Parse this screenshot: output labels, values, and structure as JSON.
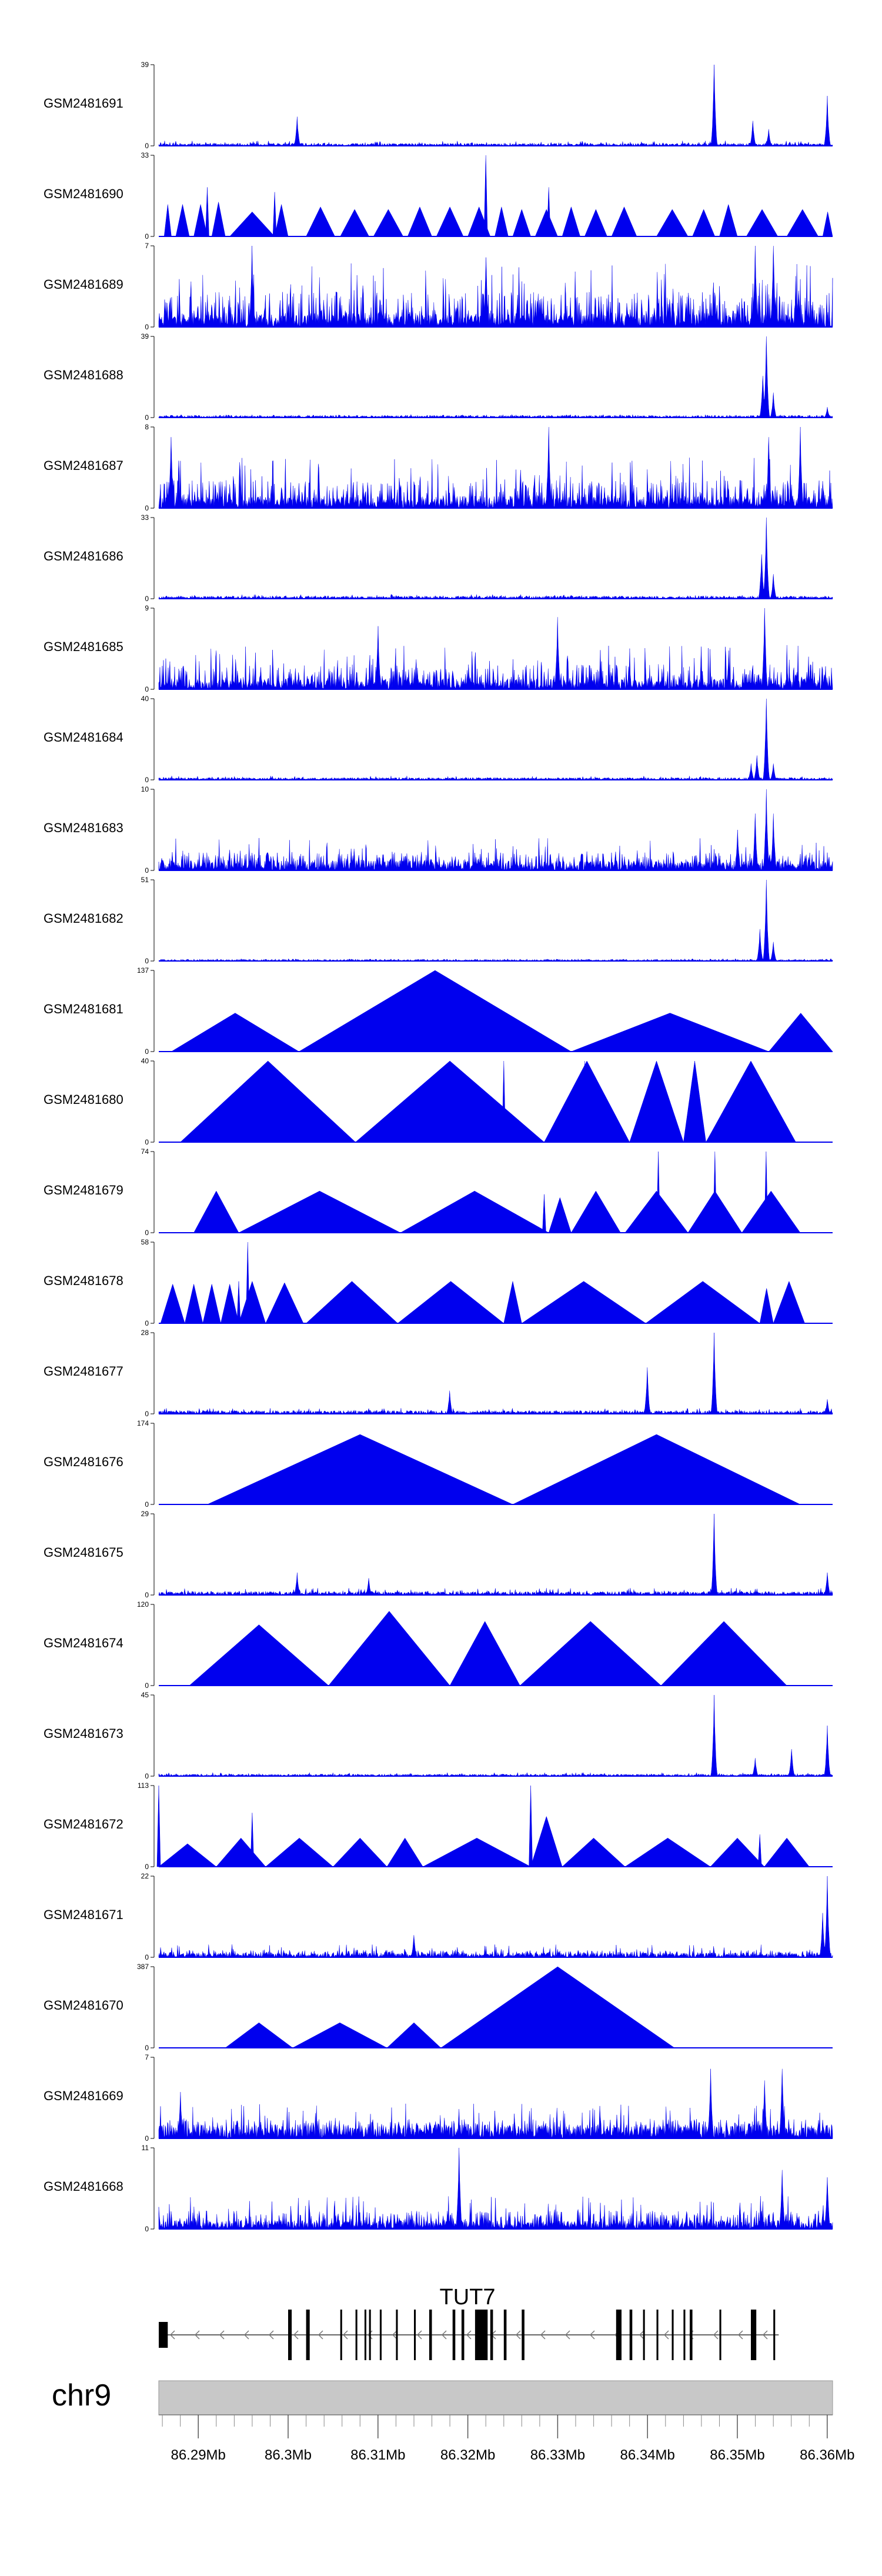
{
  "chart_data": {
    "type": "area",
    "title": "",
    "x_unit": "Mb",
    "xlim": [
      86.2856,
      86.3606
    ],
    "coverage_color": "#0000ee",
    "tracks": [
      {
        "name": "GSM2481691",
        "ymax": 39,
        "ymin": 0,
        "baseline": 1,
        "noise": 2.5,
        "style": "dense",
        "peaks": [
          [
            86.301,
            14
          ],
          [
            86.3474,
            39
          ],
          [
            86.3517,
            12
          ],
          [
            86.3535,
            8
          ],
          [
            86.36,
            24
          ]
        ]
      },
      {
        "name": "GSM2481690",
        "ymax": 33,
        "ymin": 0,
        "baseline": 0,
        "noise": 0,
        "style": "triangles",
        "segments": [
          [
            86.2862,
            86.287,
            13
          ],
          [
            86.2875,
            86.289,
            13
          ],
          [
            86.2895,
            86.291,
            13
          ],
          [
            86.2915,
            86.293,
            14
          ],
          [
            86.2935,
            86.2985,
            10
          ],
          [
            86.2985,
            86.3,
            13
          ],
          [
            86.302,
            86.3052,
            12
          ],
          [
            86.3058,
            86.309,
            11
          ],
          [
            86.3095,
            86.3128,
            11
          ],
          [
            86.3133,
            86.316,
            12
          ],
          [
            86.3165,
            86.3195,
            12
          ],
          [
            86.32,
            86.3225,
            12
          ],
          [
            86.323,
            86.3245,
            12
          ],
          [
            86.325,
            86.327,
            11
          ],
          [
            86.3275,
            86.33,
            11
          ],
          [
            86.3305,
            86.3325,
            12
          ],
          [
            86.333,
            86.3355,
            11
          ],
          [
            86.336,
            86.3388,
            12
          ],
          [
            86.341,
            86.3445,
            11
          ],
          [
            86.345,
            86.3475,
            11
          ],
          [
            86.348,
            86.35,
            13
          ],
          [
            86.351,
            86.3545,
            11
          ],
          [
            86.3555,
            86.359,
            11
          ],
          [
            86.3595,
            86.3606,
            10
          ]
        ],
        "peaks": [
          [
            86.322,
            33
          ],
          [
            86.329,
            20
          ],
          [
            86.291,
            20
          ],
          [
            86.2985,
            18
          ]
        ]
      },
      {
        "name": "GSM2481689",
        "ymax": 7,
        "ymin": 0,
        "baseline": 1,
        "noise": 5.5,
        "style": "dense",
        "peaks": [
          [
            86.352,
            7
          ],
          [
            86.354,
            7
          ],
          [
            86.296,
            7
          ],
          [
            86.322,
            6
          ]
        ]
      },
      {
        "name": "GSM2481688",
        "ymax": 39,
        "ymin": 0,
        "baseline": 1,
        "noise": 1.5,
        "style": "dense",
        "peaks": [
          [
            86.3532,
            39
          ],
          [
            86.3528,
            20
          ],
          [
            86.354,
            12
          ],
          [
            86.36,
            5
          ]
        ]
      },
      {
        "name": "GSM2481687",
        "ymax": 8,
        "ymin": 0,
        "baseline": 1,
        "noise": 5,
        "style": "dense",
        "peaks": [
          [
            86.357,
            8
          ],
          [
            86.3535,
            7
          ],
          [
            86.329,
            8
          ],
          [
            86.287,
            7
          ]
        ]
      },
      {
        "name": "GSM2481686",
        "ymax": 33,
        "ymin": 0,
        "baseline": 1,
        "noise": 1.8,
        "style": "dense",
        "peaks": [
          [
            86.3532,
            33
          ],
          [
            86.3527,
            18
          ],
          [
            86.354,
            10
          ]
        ]
      },
      {
        "name": "GSM2481685",
        "ymax": 9,
        "ymin": 0,
        "baseline": 1,
        "noise": 5,
        "style": "dense",
        "peaks": [
          [
            86.353,
            9
          ],
          [
            86.33,
            8
          ],
          [
            86.31,
            7
          ]
        ]
      },
      {
        "name": "GSM2481684",
        "ymax": 40,
        "ymin": 0,
        "baseline": 1,
        "noise": 2,
        "style": "dense",
        "peaks": [
          [
            86.3532,
            40
          ],
          [
            86.3522,
            12
          ],
          [
            86.3515,
            8
          ],
          [
            86.354,
            8
          ]
        ]
      },
      {
        "name": "GSM2481683",
        "ymax": 10,
        "ymin": 0,
        "baseline": 1,
        "noise": 4,
        "style": "dense",
        "peaks": [
          [
            86.3532,
            10
          ],
          [
            86.352,
            7
          ],
          [
            86.354,
            7
          ],
          [
            86.35,
            5
          ]
        ]
      },
      {
        "name": "GSM2481682",
        "ymax": 51,
        "ymin": 0,
        "baseline": 1,
        "noise": 1.5,
        "style": "dense",
        "peaks": [
          [
            86.3532,
            51
          ],
          [
            86.3525,
            20
          ],
          [
            86.354,
            12
          ]
        ]
      },
      {
        "name": "GSM2481681",
        "ymax": 137,
        "ymin": 0,
        "baseline": 0,
        "noise": 0,
        "style": "triangles",
        "segments": [
          [
            86.287,
            86.3012,
            65
          ],
          [
            86.3012,
            86.3315,
            137
          ],
          [
            86.3315,
            86.3535,
            65
          ],
          [
            86.3535,
            86.3606,
            65
          ]
        ],
        "peaks": []
      },
      {
        "name": "GSM2481680",
        "ymax": 40,
        "ymin": 0,
        "baseline": 0,
        "noise": 0,
        "style": "triangles",
        "segments": [
          [
            86.288,
            86.3075,
            40
          ],
          [
            86.3075,
            86.3285,
            40
          ],
          [
            86.3285,
            86.338,
            40
          ],
          [
            86.338,
            86.344,
            40
          ],
          [
            86.344,
            86.3465,
            40
          ],
          [
            86.3465,
            86.3565,
            40
          ]
        ],
        "peaks": [
          [
            86.324,
            40
          ],
          [
            86.333,
            40
          ]
        ]
      },
      {
        "name": "GSM2481679",
        "ymax": 74,
        "ymin": 0,
        "baseline": 0,
        "noise": 0,
        "style": "triangles",
        "segments": [
          [
            86.2895,
            86.2945,
            38
          ],
          [
            86.2945,
            86.3125,
            38
          ],
          [
            86.3125,
            86.329,
            38
          ],
          [
            86.329,
            86.3315,
            32
          ],
          [
            86.3315,
            86.337,
            38
          ],
          [
            86.3375,
            86.3445,
            38
          ],
          [
            86.3445,
            86.3505,
            38
          ],
          [
            86.3505,
            86.357,
            38
          ]
        ],
        "peaks": [
          [
            86.3412,
            74
          ],
          [
            86.3475,
            74
          ],
          [
            86.3532,
            74
          ],
          [
            86.3285,
            35
          ]
        ]
      },
      {
        "name": "GSM2481678",
        "ymax": 58,
        "ymin": 0,
        "baseline": 0,
        "noise": 0,
        "style": "triangles",
        "segments": [
          [
            86.2858,
            86.2885,
            28
          ],
          [
            86.2885,
            86.2905,
            28
          ],
          [
            86.2905,
            86.2925,
            28
          ],
          [
            86.2925,
            86.2945,
            28
          ],
          [
            86.2945,
            86.2975,
            30
          ],
          [
            86.2975,
            86.3017,
            29
          ],
          [
            86.302,
            86.3122,
            30
          ],
          [
            86.3122,
            86.324,
            30
          ],
          [
            86.324,
            86.326,
            30
          ],
          [
            86.326,
            86.3398,
            30
          ],
          [
            86.3398,
            86.3525,
            30
          ],
          [
            86.3525,
            86.354,
            25
          ],
          [
            86.354,
            86.3575,
            30
          ]
        ],
        "peaks": [
          [
            86.2955,
            58
          ],
          [
            86.2945,
            30
          ]
        ]
      },
      {
        "name": "GSM2481677",
        "ymax": 28,
        "ymin": 0,
        "baseline": 1,
        "noise": 2,
        "style": "dense",
        "peaks": [
          [
            86.3474,
            28
          ],
          [
            86.34,
            16
          ],
          [
            86.36,
            5
          ],
          [
            86.318,
            8
          ]
        ]
      },
      {
        "name": "GSM2481676",
        "ymax": 174,
        "ymin": 0,
        "baseline": 0,
        "noise": 0,
        "style": "triangles",
        "segments": [
          [
            86.291,
            86.325,
            150
          ],
          [
            86.325,
            86.357,
            150
          ]
        ],
        "peaks": []
      },
      {
        "name": "GSM2481675",
        "ymax": 29,
        "ymin": 0,
        "baseline": 1,
        "noise": 2.5,
        "style": "dense",
        "peaks": [
          [
            86.3474,
            29
          ],
          [
            86.301,
            8
          ],
          [
            86.36,
            8
          ],
          [
            86.309,
            6
          ]
        ]
      },
      {
        "name": "GSM2481674",
        "ymax": 120,
        "ymin": 0,
        "baseline": 0,
        "noise": 0,
        "style": "triangles",
        "segments": [
          [
            86.289,
            86.3045,
            90
          ],
          [
            86.3045,
            86.318,
            110
          ],
          [
            86.318,
            86.3258,
            95
          ],
          [
            86.3258,
            86.3415,
            95
          ],
          [
            86.3415,
            86.3555,
            95
          ]
        ],
        "peaks": []
      },
      {
        "name": "GSM2481673",
        "ymax": 45,
        "ymin": 0,
        "baseline": 1,
        "noise": 2,
        "style": "dense",
        "peaks": [
          [
            86.3474,
            45
          ],
          [
            86.36,
            28
          ],
          [
            86.356,
            15
          ],
          [
            86.352,
            10
          ]
        ]
      },
      {
        "name": "GSM2481672",
        "ymax": 113,
        "ymin": 0,
        "baseline": 0,
        "noise": 0,
        "style": "triangles",
        "segments": [
          [
            86.2856,
            86.292,
            32
          ],
          [
            86.292,
            86.2975,
            40
          ],
          [
            86.2975,
            86.305,
            40
          ],
          [
            86.305,
            86.311,
            40
          ],
          [
            86.311,
            86.315,
            40
          ],
          [
            86.315,
            86.327,
            40
          ],
          [
            86.327,
            86.3305,
            70
          ],
          [
            86.3305,
            86.3375,
            40
          ],
          [
            86.3375,
            86.347,
            40
          ],
          [
            86.347,
            86.353,
            40
          ],
          [
            86.353,
            86.358,
            40
          ]
        ],
        "peaks": [
          [
            86.296,
            75
          ],
          [
            86.327,
            113
          ],
          [
            86.2856,
            113
          ],
          [
            86.3525,
            45
          ]
        ]
      },
      {
        "name": "GSM2481671",
        "ymax": 22,
        "ymin": 0,
        "baseline": 1,
        "noise": 3.5,
        "style": "dense",
        "peaks": [
          [
            86.36,
            22
          ],
          [
            86.3595,
            12
          ],
          [
            86.314,
            6
          ]
        ]
      },
      {
        "name": "GSM2481670",
        "ymax": 387,
        "ymin": 0,
        "baseline": 0,
        "noise": 0,
        "style": "triangles",
        "segments": [
          [
            86.293,
            86.3005,
            120
          ],
          [
            86.3005,
            86.311,
            120
          ],
          [
            86.311,
            86.317,
            120
          ],
          [
            86.317,
            86.343,
            387
          ]
        ],
        "peaks": []
      },
      {
        "name": "GSM2481669",
        "ymax": 7,
        "ymin": 0,
        "baseline": 1,
        "noise": 3,
        "style": "dense",
        "peaks": [
          [
            86.355,
            6
          ],
          [
            86.347,
            6
          ],
          [
            86.353,
            5
          ],
          [
            86.288,
            4
          ]
        ]
      },
      {
        "name": "GSM2481668",
        "ymax": 11,
        "ymin": 0,
        "baseline": 1,
        "noise": 4.5,
        "style": "dense",
        "peaks": [
          [
            86.319,
            11
          ],
          [
            86.355,
            8
          ],
          [
            86.36,
            7
          ]
        ]
      }
    ],
    "gene": {
      "name": "TUT7",
      "start": 86.2856,
      "end": 86.3546,
      "strand": "-",
      "exons": [
        [
          86.2856,
          86.2866
        ],
        [
          86.3,
          86.3004
        ],
        [
          86.302,
          86.3024
        ],
        [
          86.3058,
          86.306
        ],
        [
          86.3075,
          86.3077
        ],
        [
          86.3085,
          86.3087
        ],
        [
          86.309,
          86.3092
        ],
        [
          86.3102,
          86.3104
        ],
        [
          86.312,
          86.3122
        ],
        [
          86.314,
          86.3142
        ],
        [
          86.3157,
          86.316
        ],
        [
          86.3183,
          86.3186
        ],
        [
          86.3193,
          86.3196
        ],
        [
          86.3208,
          86.3222
        ],
        [
          86.3225,
          86.3228
        ],
        [
          86.324,
          86.3243
        ],
        [
          86.326,
          86.3263
        ],
        [
          86.3365,
          86.3371
        ],
        [
          86.338,
          86.3383
        ],
        [
          86.3395,
          86.3397
        ],
        [
          86.341,
          86.3412
        ],
        [
          86.3427,
          86.3429
        ],
        [
          86.344,
          86.3442
        ],
        [
          86.3447,
          86.345
        ],
        [
          86.348,
          86.3482
        ],
        [
          86.3515,
          86.3521
        ],
        [
          86.354,
          86.3542
        ]
      ]
    },
    "chromosome": {
      "name": "chr9",
      "ticks": [
        86.29,
        86.3,
        86.31,
        86.32,
        86.33,
        86.34,
        86.35,
        86.36
      ],
      "tick_labels": [
        "86.29Mb",
        "86.3Mb",
        "86.31Mb",
        "86.32Mb",
        "86.33Mb",
        "86.34Mb",
        "86.35Mb",
        "86.36Mb"
      ],
      "minor_tick_step": 0.002
    }
  }
}
